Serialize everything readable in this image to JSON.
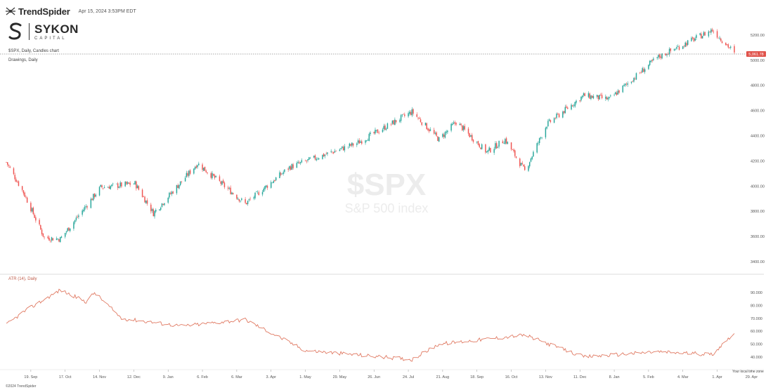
{
  "header": {
    "brand": "TrendSpider",
    "timestamp": "Apr 15, 2024 3:53PM EDT",
    "sykon_name": "SYKON",
    "sykon_sub": "CAPITAL"
  },
  "labels": {
    "chart_label": "$SPX, Daily, Candles chart",
    "drawings_label": "Drawings, Daily",
    "atr_label": "ATR (14), Daily",
    "footer": "©2024 TrendSpider",
    "time_zone": "Your local time zone"
  },
  "watermark": {
    "symbol": "$SPX",
    "name": "S&P 500 index"
  },
  "colors": {
    "up": "#26a69a",
    "down": "#ef5350",
    "atr": "#e07a63",
    "price_tag": "#e0524a"
  },
  "price_tag": "5,061.78",
  "chart_data": [
    {
      "type": "candlestick",
      "title": "$SPX, Daily, Candles chart",
      "ylim": [
        3400,
        5300
      ],
      "yticks": [
        "3400.00",
        "3600.00",
        "3800.00",
        "4000.00",
        "4200.00",
        "4400.00",
        "4600.00",
        "4800.00",
        "5000.00",
        "5200.00"
      ],
      "last_price": 5061.78,
      "x_tick_labels": [
        "19. Sep",
        "17. Oct",
        "14. Nov",
        "12. Dec",
        "9. Jan",
        "6. Feb",
        "6. Mar",
        "3. Apr",
        "1. May",
        "29. May",
        "26. Jun",
        "24. Jul",
        "21. Aug",
        "18. Sep",
        "16. Oct",
        "13. Nov",
        "11. Dec",
        "8. Jan",
        "5. Feb",
        "4. Mar",
        "1. Apr",
        "29. Apr"
      ],
      "key_closes": [
        {
          "date": "2022-08-30",
          "close": 4190
        },
        {
          "date": "2022-09-13",
          "close": 3950
        },
        {
          "date": "2022-09-30",
          "close": 3590
        },
        {
          "date": "2022-10-13",
          "close": 3580
        },
        {
          "date": "2022-11-15",
          "close": 3990
        },
        {
          "date": "2022-12-13",
          "close": 4020
        },
        {
          "date": "2022-12-28",
          "close": 3785
        },
        {
          "date": "2023-02-02",
          "close": 4180
        },
        {
          "date": "2023-03-13",
          "close": 3860
        },
        {
          "date": "2023-04-18",
          "close": 4150
        },
        {
          "date": "2023-06-12",
          "close": 4340
        },
        {
          "date": "2023-07-27",
          "close": 4590
        },
        {
          "date": "2023-08-18",
          "close": 4370
        },
        {
          "date": "2023-09-01",
          "close": 4510
        },
        {
          "date": "2023-09-26",
          "close": 4270
        },
        {
          "date": "2023-10-11",
          "close": 4370
        },
        {
          "date": "2023-10-27",
          "close": 4120
        },
        {
          "date": "2023-11-14",
          "close": 4490
        },
        {
          "date": "2023-12-14",
          "close": 4720
        },
        {
          "date": "2024-01-04",
          "close": 4690
        },
        {
          "date": "2024-02-12",
          "close": 5020
        },
        {
          "date": "2024-03-28",
          "close": 5240
        },
        {
          "date": "2024-04-15",
          "close": 5061.78
        }
      ]
    },
    {
      "type": "line",
      "title": "ATR (14), Daily",
      "ylim": [
        35,
        95
      ],
      "yticks": [
        "40.000",
        "50.000",
        "60.000",
        "70.000",
        "80.000",
        "90.000"
      ],
      "key_points": [
        {
          "date": "2022-08-30",
          "value": 65
        },
        {
          "date": "2022-09-13",
          "value": 75
        },
        {
          "date": "2022-10-13",
          "value": 92
        },
        {
          "date": "2022-11-03",
          "value": 83
        },
        {
          "date": "2022-11-10",
          "value": 90
        },
        {
          "date": "2022-12-02",
          "value": 70
        },
        {
          "date": "2023-01-20",
          "value": 64
        },
        {
          "date": "2023-03-13",
          "value": 69
        },
        {
          "date": "2023-05-01",
          "value": 45
        },
        {
          "date": "2023-07-27",
          "value": 38
        },
        {
          "date": "2023-08-18",
          "value": 50
        },
        {
          "date": "2023-10-27",
          "value": 57
        },
        {
          "date": "2023-12-14",
          "value": 40
        },
        {
          "date": "2024-02-12",
          "value": 44
        },
        {
          "date": "2024-03-28",
          "value": 42
        },
        {
          "date": "2024-04-15",
          "value": 59
        }
      ]
    }
  ]
}
